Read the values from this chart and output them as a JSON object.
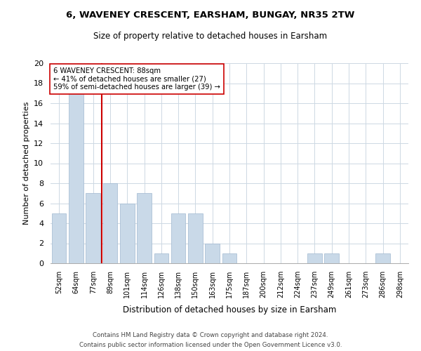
{
  "title1": "6, WAVENEY CRESCENT, EARSHAM, BUNGAY, NR35 2TW",
  "title2": "Size of property relative to detached houses in Earsham",
  "xlabel": "Distribution of detached houses by size in Earsham",
  "ylabel": "Number of detached properties",
  "categories": [
    "52sqm",
    "64sqm",
    "77sqm",
    "89sqm",
    "101sqm",
    "114sqm",
    "126sqm",
    "138sqm",
    "150sqm",
    "163sqm",
    "175sqm",
    "187sqm",
    "200sqm",
    "212sqm",
    "224sqm",
    "237sqm",
    "249sqm",
    "261sqm",
    "273sqm",
    "286sqm",
    "298sqm"
  ],
  "values": [
    5,
    17,
    7,
    8,
    6,
    7,
    1,
    5,
    5,
    2,
    1,
    0,
    0,
    0,
    0,
    1,
    1,
    0,
    0,
    1,
    0
  ],
  "bar_color": "#c9d9e8",
  "bar_edge_color": "#a0b8d0",
  "vline_color": "#cc0000",
  "annotation_text": "6 WAVENEY CRESCENT: 88sqm\n← 41% of detached houses are smaller (27)\n59% of semi-detached houses are larger (39) →",
  "annotation_box_color": "#ffffff",
  "annotation_box_edgecolor": "#cc0000",
  "ylim": [
    0,
    20
  ],
  "yticks": [
    0,
    2,
    4,
    6,
    8,
    10,
    12,
    14,
    16,
    18,
    20
  ],
  "footer1": "Contains HM Land Registry data © Crown copyright and database right 2024.",
  "footer2": "Contains public sector information licensed under the Open Government Licence v3.0.",
  "background_color": "#ffffff",
  "grid_color": "#cdd8e3"
}
